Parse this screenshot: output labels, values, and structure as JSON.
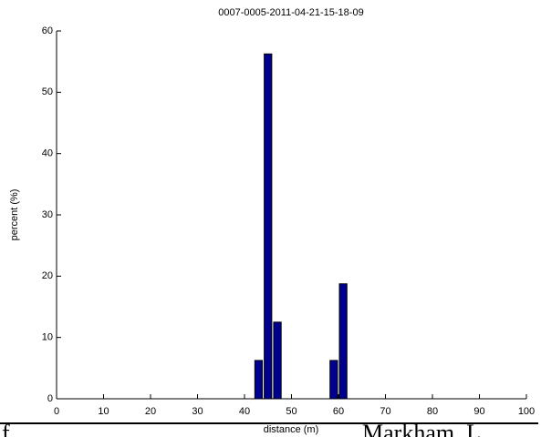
{
  "chart_data": {
    "type": "bar",
    "title": "0007-0005-2011-04-21-15-18-09",
    "x_label": "distance (m)",
    "y_label": "percent (%)",
    "x": [
      43,
      45,
      47,
      59,
      61
    ],
    "values": [
      6.25,
      56.25,
      12.5,
      6.25,
      18.75
    ],
    "color": "#00008f",
    "xlim": [
      0,
      100
    ],
    "xticks": [
      0,
      10,
      20,
      30,
      40,
      50,
      60,
      70,
      80,
      90,
      100
    ],
    "ylim": [
      0,
      60
    ],
    "yticks": [
      0,
      10,
      20,
      30,
      40,
      50,
      60
    ],
    "grid": false
  },
  "footer": {
    "left": "f",
    "right": "Markham, L"
  }
}
